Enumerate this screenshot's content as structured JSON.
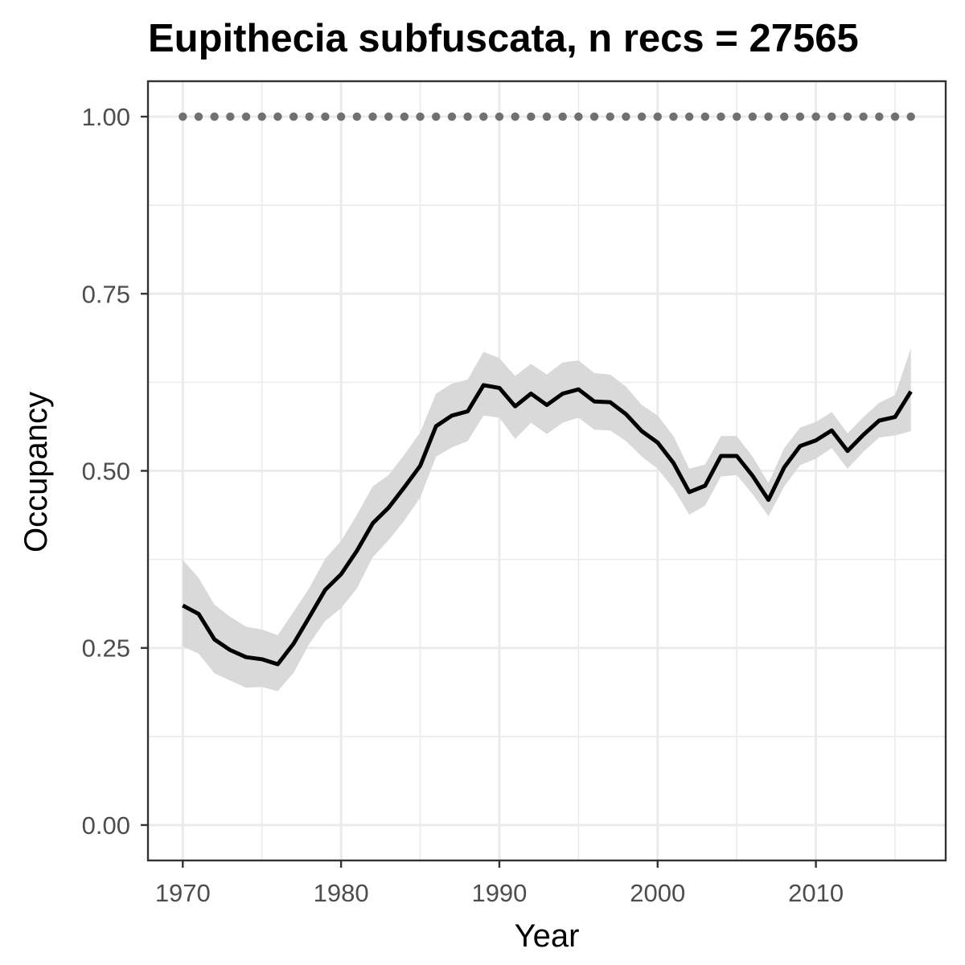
{
  "chart_data": {
    "type": "line",
    "title": "Eupithecia subfuscata, n recs = 27565",
    "xlabel": "Year",
    "ylabel": "Occupancy",
    "xlim": [
      1967.8,
      2018.2
    ],
    "ylim": [
      -0.05,
      1.05
    ],
    "x_ticks": [
      1970,
      1980,
      1990,
      2000,
      2010
    ],
    "y_ticks": [
      0.0,
      0.25,
      0.5,
      0.75,
      1.0
    ],
    "y_tick_labels": [
      "0.00",
      "0.25",
      "0.50",
      "0.75",
      "1.00"
    ],
    "grid": true,
    "legend": "none",
    "colors": {
      "line": "#000000",
      "ribbon": "#d9d9d9",
      "dots": "#707070",
      "grid": "#ebebeb",
      "panel_border": "#333333",
      "tick_label": "#4d4d4d"
    },
    "x": [
      1970,
      1971,
      1972,
      1973,
      1974,
      1975,
      1976,
      1977,
      1978,
      1979,
      1980,
      1981,
      1982,
      1983,
      1984,
      1985,
      1986,
      1987,
      1988,
      1989,
      1990,
      1991,
      1992,
      1993,
      1994,
      1995,
      1996,
      1997,
      1998,
      1999,
      2000,
      2001,
      2002,
      2003,
      2004,
      2005,
      2006,
      2007,
      2008,
      2009,
      2010,
      2011,
      2012,
      2013,
      2014,
      2015,
      2016
    ],
    "series": [
      {
        "values": [
          0.31,
          0.298,
          0.262,
          0.247,
          0.237,
          0.234,
          0.227,
          0.256,
          0.294,
          0.332,
          0.354,
          0.387,
          0.426,
          0.448,
          0.477,
          0.507,
          0.563,
          0.578,
          0.584,
          0.621,
          0.617,
          0.591,
          0.609,
          0.593,
          0.609,
          0.615,
          0.598,
          0.597,
          0.58,
          0.556,
          0.54,
          0.511,
          0.47,
          0.479,
          0.521,
          0.521,
          0.493,
          0.459,
          0.505,
          0.535,
          0.543,
          0.557,
          0.528,
          0.551,
          0.571,
          0.576,
          0.612
        ],
        "lower": [
          0.252,
          0.242,
          0.214,
          0.204,
          0.194,
          0.195,
          0.189,
          0.215,
          0.256,
          0.288,
          0.306,
          0.334,
          0.378,
          0.402,
          0.43,
          0.462,
          0.52,
          0.533,
          0.542,
          0.578,
          0.575,
          0.545,
          0.568,
          0.552,
          0.568,
          0.575,
          0.558,
          0.557,
          0.542,
          0.52,
          0.503,
          0.475,
          0.438,
          0.451,
          0.492,
          0.494,
          0.467,
          0.436,
          0.478,
          0.508,
          0.517,
          0.532,
          0.503,
          0.527,
          0.547,
          0.55,
          0.556
        ],
        "upper": [
          0.374,
          0.349,
          0.311,
          0.294,
          0.28,
          0.276,
          0.268,
          0.301,
          0.335,
          0.376,
          0.401,
          0.438,
          0.478,
          0.494,
          0.523,
          0.554,
          0.609,
          0.623,
          0.629,
          0.668,
          0.659,
          0.634,
          0.651,
          0.636,
          0.653,
          0.656,
          0.638,
          0.636,
          0.619,
          0.593,
          0.578,
          0.549,
          0.503,
          0.509,
          0.549,
          0.549,
          0.52,
          0.483,
          0.532,
          0.561,
          0.569,
          0.583,
          0.553,
          0.576,
          0.596,
          0.607,
          0.673
        ]
      },
      {
        "style": "dotted",
        "values": [
          1,
          1,
          1,
          1,
          1,
          1,
          1,
          1,
          1,
          1,
          1,
          1,
          1,
          1,
          1,
          1,
          1,
          1,
          1,
          1,
          1,
          1,
          1,
          1,
          1,
          1,
          1,
          1,
          1,
          1,
          1,
          1,
          1,
          1,
          1,
          1,
          1,
          1,
          1,
          1,
          1,
          1,
          1,
          1,
          1,
          1,
          1
        ]
      }
    ]
  }
}
